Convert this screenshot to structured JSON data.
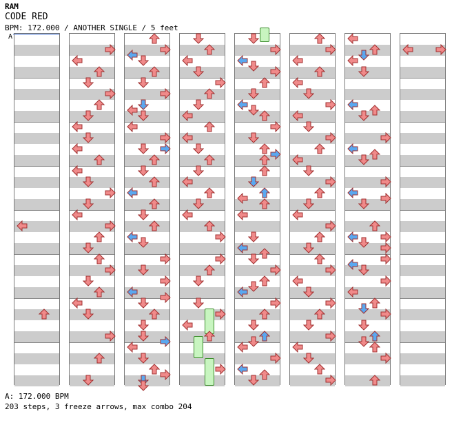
{
  "song": {
    "artist": "RAM",
    "title": "CODE RED",
    "info": "BPM: 172.000 / ANOTHER SINGLE / 5 feet"
  },
  "speed_marker": "A",
  "footer": {
    "bpm_line": "A: 172.000 BPM",
    "stats_line": "203 steps, 3 freeze arrows, max combo 204"
  },
  "colors": {
    "normal_arrow": "#f08a8a",
    "blue_arrow": "#5aa8f0",
    "freeze": "#c8f5c0",
    "stripe": "#cccccc"
  },
  "columns": [
    {
      "notes": []
    },
    {
      "notes": [
        [
          "R",
          1
        ],
        [
          "L",
          2
        ],
        [
          "U",
          3
        ],
        [
          "D",
          4
        ],
        [
          "R",
          5
        ],
        [
          "U",
          6
        ],
        [
          "D",
          7
        ],
        [
          "L",
          8
        ],
        [
          "D",
          9
        ],
        [
          "L",
          10
        ],
        [
          "U",
          11
        ],
        [
          "L",
          12
        ],
        [
          "D",
          13
        ],
        [
          "R",
          14
        ],
        [
          "D",
          15
        ],
        [
          "L",
          16
        ],
        [
          "R",
          17
        ],
        [
          "U",
          18
        ],
        [
          "D",
          19
        ],
        [
          "U",
          20
        ],
        [
          "R",
          21
        ],
        [
          "D",
          22
        ],
        [
          "U",
          23
        ],
        [
          "L",
          24
        ],
        [
          "D",
          25
        ],
        [
          "R",
          27
        ],
        [
          "U",
          29
        ],
        [
          "D",
          31
        ]
      ]
    },
    {
      "notes": [
        [
          "U",
          0
        ],
        [
          "R",
          1
        ],
        [
          "Lb",
          1.5
        ],
        [
          "D",
          2
        ],
        [
          "U",
          3
        ],
        [
          "D",
          4
        ],
        [
          "R",
          5
        ],
        [
          "Db",
          6
        ],
        [
          "L",
          6.5
        ],
        [
          "D",
          7
        ],
        [
          "L",
          8
        ],
        [
          "R",
          9
        ],
        [
          "D",
          10
        ],
        [
          "Rb",
          10
        ],
        [
          "U",
          11
        ],
        [
          "D",
          12
        ],
        [
          "U",
          13
        ],
        [
          "Lb",
          14
        ],
        [
          "U",
          15
        ],
        [
          "D",
          16
        ],
        [
          "U",
          17
        ],
        [
          "Lb",
          18
        ],
        [
          "D",
          18.5
        ],
        [
          "R",
          20
        ],
        [
          "D",
          21
        ],
        [
          "R",
          22
        ],
        [
          "Lb",
          23
        ],
        [
          "R",
          23.5
        ],
        [
          "D",
          24
        ],
        [
          "U",
          25
        ],
        [
          "D",
          26
        ],
        [
          "D",
          27
        ],
        [
          "Rb",
          27.5
        ],
        [
          "L",
          28
        ],
        [
          "D",
          29
        ],
        [
          "U",
          30
        ],
        [
          "R",
          30.5
        ],
        [
          "Db",
          31
        ],
        [
          "D",
          31.5
        ]
      ]
    },
    {
      "notes": [
        [
          "D",
          0
        ],
        [
          "U",
          1
        ],
        [
          "L",
          2
        ],
        [
          "D",
          3
        ],
        [
          "R",
          4
        ],
        [
          "U",
          5
        ],
        [
          "D",
          6
        ],
        [
          "L",
          7
        ],
        [
          "U",
          8
        ],
        [
          "L",
          9
        ],
        [
          "D",
          10
        ],
        [
          "U",
          11
        ],
        [
          "D",
          12
        ],
        [
          "L",
          13
        ],
        [
          "U",
          14
        ],
        [
          "D",
          15
        ],
        [
          "L",
          16
        ],
        [
          "U",
          17
        ],
        [
          "R",
          18
        ],
        [
          "R",
          20
        ],
        [
          "U",
          21
        ],
        [
          "D",
          22
        ],
        [
          "D",
          24
        ],
        [
          "R",
          25
        ],
        [
          "L",
          26
        ],
        [
          "U",
          27
        ],
        [
          "R",
          30
        ]
      ]
    },
    {
      "notes": [
        [
          "D",
          0
        ],
        [
          "R",
          1
        ],
        [
          "Lb",
          2
        ],
        [
          "D",
          2.5
        ],
        [
          "R",
          3
        ],
        [
          "U",
          4
        ],
        [
          "D",
          5
        ],
        [
          "Lb",
          6
        ],
        [
          "D",
          6.5
        ],
        [
          "U",
          7
        ],
        [
          "R",
          8
        ],
        [
          "D",
          9
        ],
        [
          "U",
          10
        ],
        [
          "Rb",
          10.5
        ],
        [
          "U",
          11
        ],
        [
          "U",
          12
        ],
        [
          "Db",
          13
        ],
        [
          "Ub",
          14
        ],
        [
          "L",
          14.5
        ],
        [
          "U",
          15
        ],
        [
          "L",
          16
        ],
        [
          "D",
          18
        ],
        [
          "Lb",
          19
        ],
        [
          "U",
          19.5
        ],
        [
          "D",
          20
        ],
        [
          "R",
          21
        ],
        [
          "U",
          22
        ],
        [
          "Lb",
          23
        ],
        [
          "D",
          22.5
        ],
        [
          "R",
          24
        ],
        [
          "U",
          25
        ],
        [
          "D",
          26
        ],
        [
          "Ub",
          27
        ],
        [
          "D",
          27.5
        ],
        [
          "L",
          28
        ],
        [
          "R",
          29
        ],
        [
          "Lb",
          30
        ],
        [
          "U",
          30.5
        ],
        [
          "D",
          31
        ]
      ]
    },
    {
      "notes": [
        [
          "U",
          0
        ],
        [
          "R",
          1
        ],
        [
          "L",
          2
        ],
        [
          "U",
          3
        ],
        [
          "L",
          4
        ],
        [
          "D",
          5
        ],
        [
          "R",
          6
        ],
        [
          "L",
          7
        ],
        [
          "D",
          8
        ],
        [
          "R",
          9
        ],
        [
          "U",
          10
        ],
        [
          "L",
          11
        ],
        [
          "D",
          12
        ],
        [
          "R",
          13
        ],
        [
          "U",
          14
        ],
        [
          "D",
          15
        ],
        [
          "L",
          16
        ],
        [
          "R",
          17
        ],
        [
          "U",
          18
        ],
        [
          "D",
          19
        ],
        [
          "U",
          20
        ],
        [
          "R",
          21
        ],
        [
          "L",
          22
        ],
        [
          "D",
          23
        ],
        [
          "R",
          24
        ],
        [
          "U",
          25
        ],
        [
          "D",
          26
        ],
        [
          "R",
          27
        ],
        [
          "L",
          28
        ],
        [
          "D",
          29
        ],
        [
          "U",
          30
        ],
        [
          "R",
          31
        ]
      ]
    },
    {
      "notes": [
        [
          "L",
          0
        ],
        [
          "U",
          1
        ],
        [
          "Db",
          1.5
        ],
        [
          "L",
          2
        ],
        [
          "D",
          3
        ],
        [
          "Lb",
          6
        ],
        [
          "U",
          6.5
        ],
        [
          "D",
          7
        ],
        [
          "R",
          9
        ],
        [
          "Lb",
          10
        ],
        [
          "U",
          10.5
        ],
        [
          "D",
          11
        ],
        [
          "R",
          13
        ],
        [
          "Lb",
          14
        ],
        [
          "R",
          14.5
        ],
        [
          "D",
          15
        ],
        [
          "U",
          17
        ],
        [
          "R",
          18
        ],
        [
          "Lb",
          18
        ],
        [
          "D",
          18.5
        ],
        [
          "R",
          19
        ],
        [
          "R",
          20
        ],
        [
          "Lb",
          20.5
        ],
        [
          "D",
          21
        ],
        [
          "R",
          22
        ],
        [
          "L",
          23
        ],
        [
          "U",
          24
        ],
        [
          "Db",
          24.5
        ],
        [
          "R",
          25
        ],
        [
          "D",
          26
        ],
        [
          "Ub",
          27
        ],
        [
          "D",
          27.5
        ],
        [
          "U",
          28
        ],
        [
          "R",
          29
        ],
        [
          "U",
          31
        ]
      ]
    },
    {
      "notes": [
        [
          "L",
          1
        ],
        [
          "R",
          1
        ]
      ]
    }
  ],
  "extra_notes": {
    "col0": [
      [
        "L",
        17
      ]
    ],
    "col0b": [
      [
        "U",
        25
      ]
    ]
  },
  "freezes": [
    {
      "col": 4,
      "start": -0.5,
      "end": 0.8
    },
    {
      "col": 3,
      "start": 25,
      "end": 27.3
    },
    {
      "col": 3,
      "start": 27.5,
      "end": 29.5
    },
    {
      "col": 3,
      "start": 29.5,
      "end": 32
    }
  ]
}
